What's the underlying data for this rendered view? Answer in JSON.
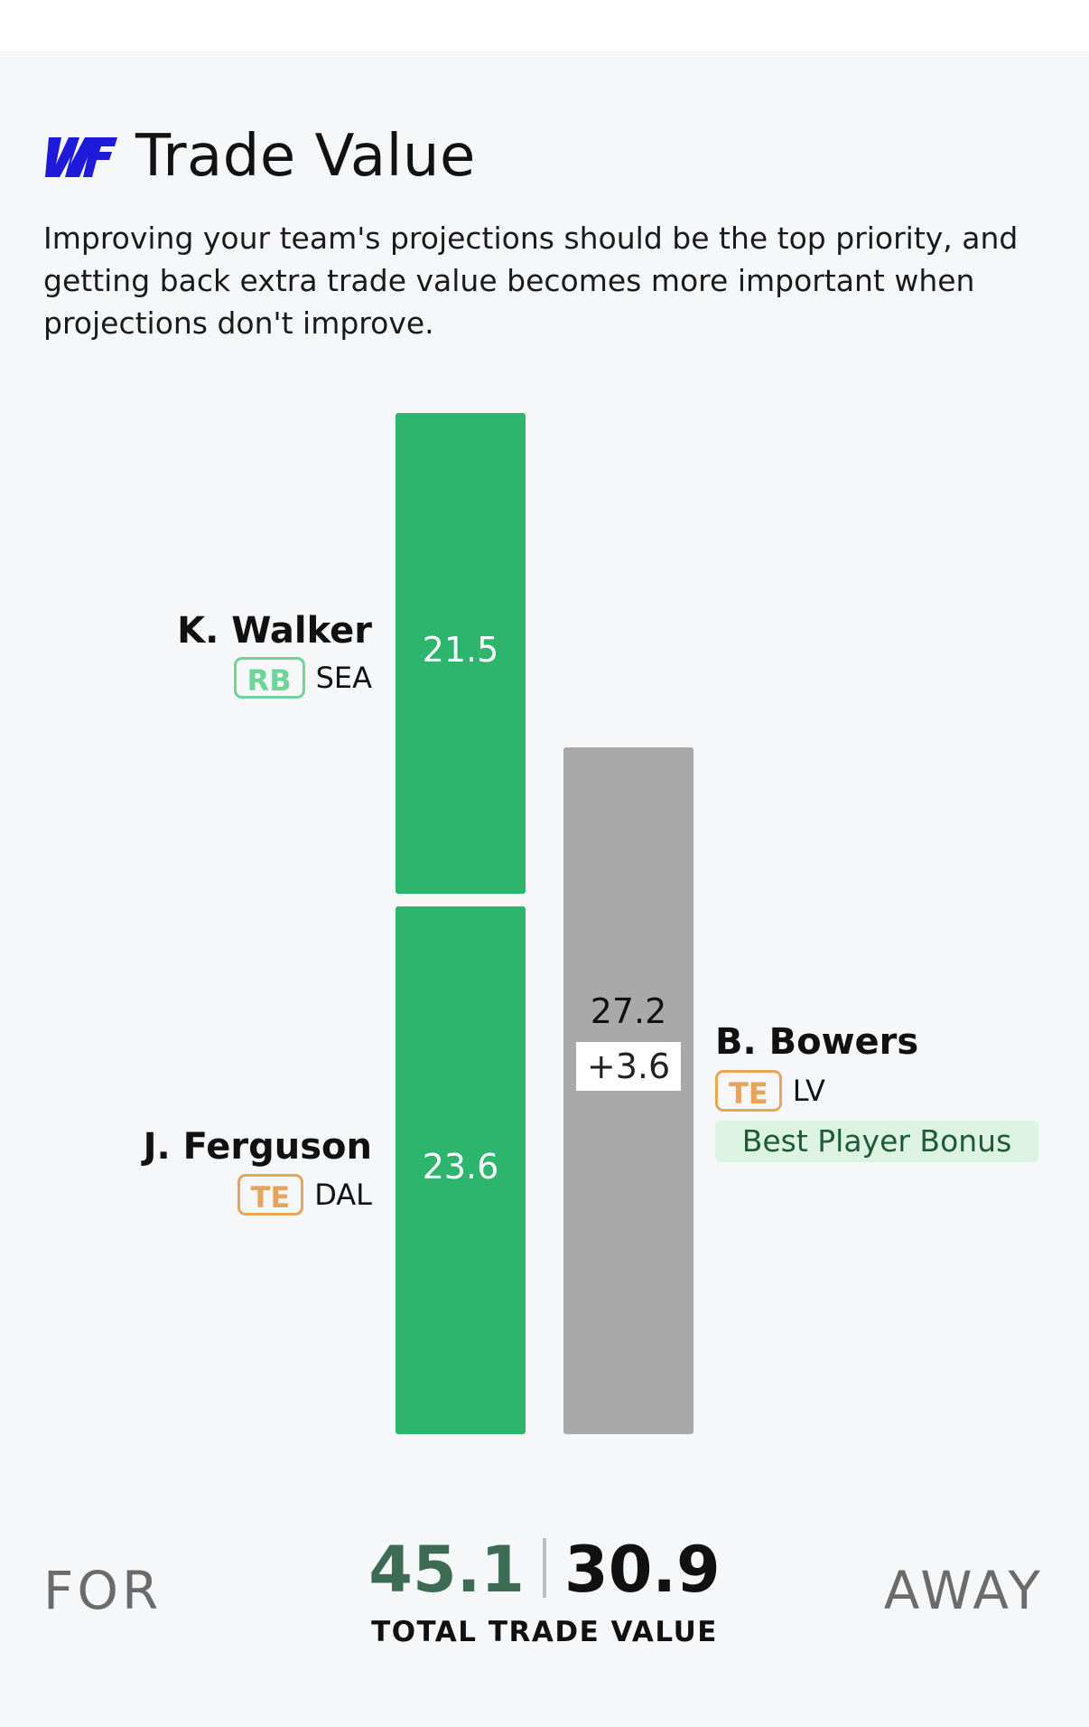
{
  "header": {
    "title": "Trade Value",
    "description": "Improving your team's projections should be the top priority, and getting back extra trade value becomes more important when projections don't improve."
  },
  "colors": {
    "for_bar": "#2db56d",
    "away_bar": "#a9a9a9",
    "rb_badge": "#6ed49a",
    "te_badge": "#e6a55b",
    "logo": "#1f1ad9",
    "for_total": "#3e6b53"
  },
  "trade": {
    "for": {
      "players": [
        {
          "name": "K. Walker",
          "position": "RB",
          "team": "SEA",
          "value": "21.5"
        },
        {
          "name": "J. Ferguson",
          "position": "TE",
          "team": "DAL",
          "value": "23.6"
        }
      ]
    },
    "away": {
      "players": [
        {
          "name": "B. Bowers",
          "position": "TE",
          "team": "LV",
          "value": "27.2",
          "bonus": "+3.6",
          "bonus_label": "Best Player Bonus"
        }
      ]
    }
  },
  "chart_data": {
    "type": "bar",
    "categories": [
      "FOR",
      "AWAY"
    ],
    "series": [
      {
        "name": "K. Walker",
        "values": [
          21.5,
          0
        ]
      },
      {
        "name": "J. Ferguson",
        "values": [
          23.6,
          0
        ]
      },
      {
        "name": "B. Bowers",
        "values": [
          0,
          27.2
        ]
      },
      {
        "name": "Best Player Bonus",
        "values": [
          0,
          3.6
        ]
      }
    ],
    "stacked": true,
    "ylim": [
      0,
      45.1
    ],
    "grid": false
  },
  "totals": {
    "for_label": "FOR",
    "away_label": "AWAY",
    "for_value": "45.1",
    "away_value": "30.9",
    "caption": "TOTAL TRADE VALUE"
  }
}
